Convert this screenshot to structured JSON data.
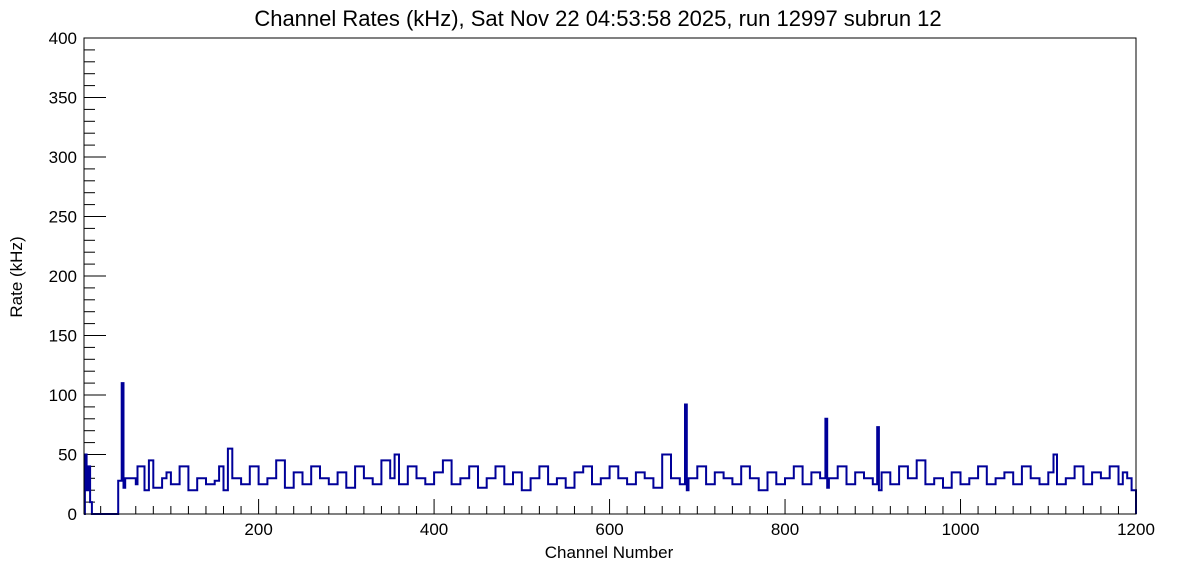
{
  "chart_data": {
    "type": "line",
    "title": "Channel Rates (kHz), Sat Nov 22 04:53:58 2025, run 12997 subrun 12",
    "xlabel": "Channel Number",
    "ylabel": "Rate (kHz)",
    "xlim": [
      1,
      1200
    ],
    "ylim": [
      0,
      400
    ],
    "x_ticks": [
      200,
      400,
      600,
      800,
      1000,
      1200
    ],
    "y_ticks": [
      0,
      50,
      100,
      150,
      200,
      250,
      300,
      350,
      400
    ],
    "grid": false,
    "legend": "none",
    "series_color": "#000099",
    "description_of_data": "per-channel rate histogram; channels 1-1200, baseline ~20-30 kHz with fluctuations to ~45 kHz",
    "series": [
      {
        "x": [
          1,
          2,
          4,
          6,
          8,
          10,
          12,
          14,
          16,
          40,
          44,
          46,
          48,
          60,
          62,
          70,
          75,
          80,
          90,
          95,
          100,
          110,
          120,
          130,
          140,
          150,
          155,
          160,
          165,
          170,
          180,
          190,
          200,
          210,
          220,
          230,
          240,
          250,
          260,
          270,
          280,
          290,
          300,
          310,
          320,
          330,
          340,
          350,
          355,
          360,
          370,
          380,
          390,
          400,
          410,
          420,
          430,
          440,
          450,
          460,
          470,
          480,
          490,
          500,
          510,
          520,
          530,
          540,
          550,
          560,
          570,
          580,
          590,
          600,
          610,
          620,
          630,
          640,
          650,
          660,
          670,
          680,
          686,
          688,
          690,
          700,
          710,
          720,
          730,
          740,
          750,
          760,
          770,
          780,
          790,
          800,
          810,
          820,
          830,
          840,
          846,
          848,
          850,
          860,
          870,
          880,
          890,
          900,
          905,
          907,
          910,
          920,
          930,
          940,
          950,
          960,
          970,
          980,
          990,
          1000,
          1010,
          1020,
          1030,
          1040,
          1050,
          1060,
          1070,
          1080,
          1090,
          1100,
          1106,
          1110,
          1120,
          1130,
          1140,
          1150,
          1160,
          1170,
          1180,
          1185,
          1190,
          1195,
          1200
        ],
        "values": [
          0,
          50,
          20,
          40,
          10,
          0,
          0,
          0,
          0,
          28,
          110,
          22,
          30,
          25,
          40,
          20,
          45,
          22,
          30,
          35,
          25,
          40,
          20,
          30,
          25,
          28,
          40,
          20,
          55,
          30,
          25,
          40,
          25,
          30,
          45,
          22,
          35,
          25,
          40,
          30,
          25,
          35,
          22,
          40,
          30,
          25,
          45,
          30,
          50,
          25,
          40,
          30,
          25,
          35,
          45,
          25,
          30,
          40,
          22,
          30,
          40,
          25,
          35,
          20,
          30,
          40,
          25,
          30,
          22,
          35,
          40,
          25,
          30,
          40,
          30,
          25,
          35,
          30,
          22,
          50,
          30,
          25,
          92,
          20,
          30,
          40,
          25,
          35,
          30,
          25,
          40,
          30,
          20,
          35,
          25,
          30,
          40,
          25,
          35,
          30,
          80,
          22,
          30,
          40,
          25,
          35,
          30,
          25,
          73,
          20,
          35,
          25,
          40,
          30,
          45,
          25,
          30,
          22,
          35,
          25,
          30,
          40,
          25,
          30,
          35,
          25,
          40,
          30,
          25,
          35,
          50,
          25,
          30,
          40,
          25,
          35,
          30,
          40,
          25,
          35,
          30,
          20,
          0
        ]
      }
    ]
  }
}
